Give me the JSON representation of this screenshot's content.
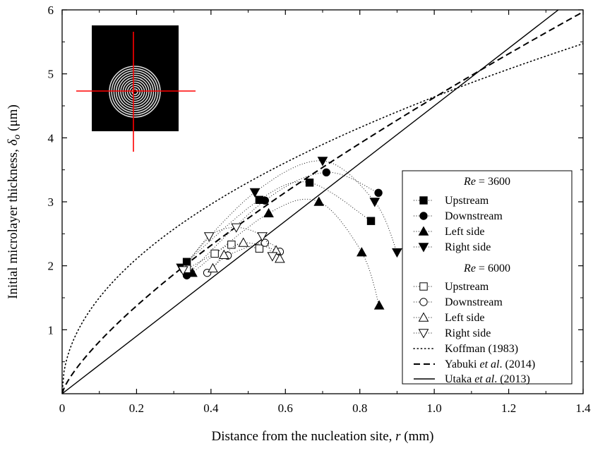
{
  "chart_data": {
    "type": "scatter",
    "xlabel": {
      "prefix": "Distance from the nucleation site, ",
      "symbol": "r",
      "suffix": " (mm)"
    },
    "ylabel": {
      "prefix": "Initial microlayer thickness, ",
      "symbol": "δ",
      "subscript": "o",
      "suffix": " (μm)"
    },
    "xlim": [
      0,
      1.4
    ],
    "ylim": [
      0,
      6
    ],
    "x_ticks": [
      "0",
      "0.2",
      "0.4",
      "0.6",
      "0.8",
      "1.0",
      "1.2",
      "1.4"
    ],
    "y_ticks": [
      "1",
      "2",
      "3",
      "4",
      "5",
      "6"
    ],
    "grid": false,
    "legend_position": "right",
    "groups": [
      {
        "heading": {
          "symbol": "Re",
          "value": " = 3600"
        }
      },
      {
        "heading": {
          "symbol": "Re",
          "value": " = 6000"
        }
      }
    ],
    "series": [
      {
        "name": "Upstream",
        "group": 0,
        "marker": "square",
        "filled": true,
        "x": [
          0.335,
          0.53,
          0.665,
          0.83
        ],
        "y": [
          2.06,
          3.03,
          3.3,
          2.7
        ]
      },
      {
        "name": "Downstream",
        "group": 0,
        "marker": "circle",
        "filled": true,
        "x": [
          0.335,
          0.545,
          0.71,
          0.85
        ],
        "y": [
          1.85,
          3.02,
          3.46,
          3.14
        ]
      },
      {
        "name": "Left side",
        "group": 0,
        "marker": "triangle-up",
        "filled": true,
        "x": [
          0.35,
          0.555,
          0.69,
          0.805,
          0.852
        ],
        "y": [
          1.89,
          2.82,
          3.0,
          2.21,
          1.38
        ]
      },
      {
        "name": "Right side",
        "group": 0,
        "marker": "triangle-down",
        "filled": true,
        "x": [
          0.32,
          0.518,
          0.7,
          0.84,
          0.9
        ],
        "y": [
          1.97,
          3.15,
          3.64,
          3.0,
          2.21
        ]
      },
      {
        "name": "Upstream",
        "group": 1,
        "marker": "square",
        "filled": false,
        "x": [
          0.335,
          0.41,
          0.455,
          0.53
        ],
        "y": [
          1.95,
          2.19,
          2.33,
          2.27
        ]
      },
      {
        "name": "Downstream",
        "group": 1,
        "marker": "circle",
        "filled": false,
        "x": [
          0.39,
          0.445,
          0.545,
          0.585
        ],
        "y": [
          1.89,
          2.16,
          2.36,
          2.22
        ]
      },
      {
        "name": "Left side",
        "group": 1,
        "marker": "triangle-up",
        "filled": false,
        "x": [
          0.405,
          0.435,
          0.487,
          0.575,
          0.585
        ],
        "y": [
          1.96,
          2.17,
          2.36,
          2.24,
          2.11
        ]
      },
      {
        "name": "Right side",
        "group": 1,
        "marker": "triangle-down",
        "filled": false,
        "x": [
          0.325,
          0.395,
          0.468,
          0.538,
          0.565
        ],
        "y": [
          1.93,
          2.46,
          2.6,
          2.46,
          2.15
        ]
      }
    ],
    "model_lines": [
      {
        "name": {
          "text": "Koffman (1983)",
          "italic": "",
          "tail": ""
        },
        "style": "dotted"
      },
      {
        "name": {
          "text": "Yabuki ",
          "italic": "et al",
          "tail": ". (2014)"
        },
        "style": "dashed"
      },
      {
        "name": {
          "text": "Utaka ",
          "italic": "et al",
          "tail": ". (2013)"
        },
        "style": "solid"
      }
    ],
    "colors": {
      "axis": "#000000",
      "inset_background": "#000000",
      "inset_crosshair": "#ff0000",
      "inset_rings": "#dddddd"
    }
  }
}
